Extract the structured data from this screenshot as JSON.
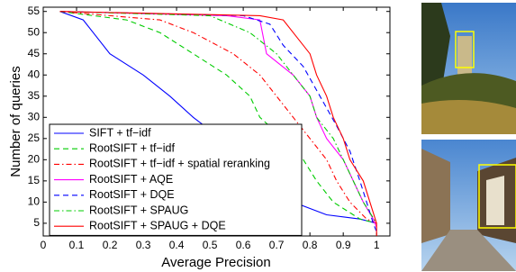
{
  "chart_data": {
    "type": "line",
    "xlabel": "Average Precision",
    "ylabel": "Number of queries",
    "xlim": [
      0,
      1.04
    ],
    "ylim": [
      2,
      56
    ],
    "xticks": [
      0,
      0.1,
      0.2,
      0.3,
      0.4,
      0.5,
      0.6,
      0.7,
      0.8,
      0.9,
      1
    ],
    "yticks": [
      5,
      10,
      15,
      20,
      25,
      30,
      35,
      40,
      45,
      50,
      55
    ],
    "legend": "lower-left",
    "series": [
      {
        "name": "SIFT + tf−idf",
        "color": "#0000ff",
        "dash": "solid",
        "x": [
          0.05,
          0.12,
          0.15,
          0.2,
          0.3,
          0.38,
          0.45,
          0.5,
          0.6,
          0.65,
          0.7,
          0.75,
          0.85,
          0.95,
          1.0
        ],
        "values": [
          55,
          53,
          50,
          45,
          40,
          35,
          30,
          27,
          25,
          20,
          15,
          10,
          7,
          6,
          5
        ]
      },
      {
        "name": "RootSIFT + tf−idf",
        "color": "#00cc00",
        "dash": "dashed",
        "x": [
          0.05,
          0.25,
          0.35,
          0.45,
          0.55,
          0.62,
          0.65,
          0.72,
          0.78,
          0.82,
          0.87,
          0.95,
          1.0
        ],
        "values": [
          55,
          53,
          50,
          45,
          40,
          35,
          30,
          25,
          20,
          15,
          10,
          6,
          5
        ]
      },
      {
        "name": "RootSIFT + tf−idf + spatial reranking",
        "color": "#ff0000",
        "dash": "dashdot",
        "x": [
          0.05,
          0.35,
          0.45,
          0.57,
          0.65,
          0.7,
          0.75,
          0.8,
          0.85,
          0.88,
          0.92,
          0.97,
          1.0
        ],
        "values": [
          55,
          53,
          50,
          45,
          40,
          35,
          30,
          25,
          20,
          15,
          10,
          6,
          5
        ]
      },
      {
        "name": "RootSIFT + AQE",
        "color": "#ff00ff",
        "dash": "solid",
        "x": [
          0.05,
          0.55,
          0.65,
          0.67,
          0.75,
          0.8,
          0.82,
          0.85,
          0.9,
          0.93,
          0.96,
          0.99,
          1.0
        ],
        "values": [
          55,
          54,
          53,
          45,
          40,
          35,
          30,
          25,
          20,
          15,
          10,
          6,
          4
        ]
      },
      {
        "name": "RootSIFT + DQE",
        "color": "#0000ff",
        "dash": "dashed",
        "x": [
          0.05,
          0.6,
          0.68,
          0.72,
          0.78,
          0.83,
          0.88,
          0.92,
          0.95,
          0.97,
          0.99,
          1.0
        ],
        "values": [
          55,
          54,
          52,
          47,
          42,
          35,
          28,
          22,
          15,
          10,
          5,
          3
        ]
      },
      {
        "name": "RootSIFT + SPAUG",
        "color": "#00cc00",
        "dash": "dashdot",
        "x": [
          0.05,
          0.5,
          0.62,
          0.7,
          0.75,
          0.8,
          0.82,
          0.87,
          0.9,
          0.93,
          0.96,
          1.0
        ],
        "values": [
          55,
          54,
          50,
          45,
          40,
          35,
          30,
          25,
          20,
          15,
          10,
          5
        ]
      },
      {
        "name": "RootSIFT + SPAUG + DQE",
        "color": "#ff0000",
        "dash": "solid",
        "x": [
          0.05,
          0.65,
          0.72,
          0.75,
          0.8,
          0.82,
          0.85,
          0.87,
          0.9,
          0.92,
          0.96,
          0.98,
          1.0,
          1.0
        ],
        "values": [
          55,
          54,
          53,
          50,
          45,
          40,
          35,
          30,
          25,
          20,
          15,
          10,
          5,
          2
        ]
      }
    ]
  }
}
